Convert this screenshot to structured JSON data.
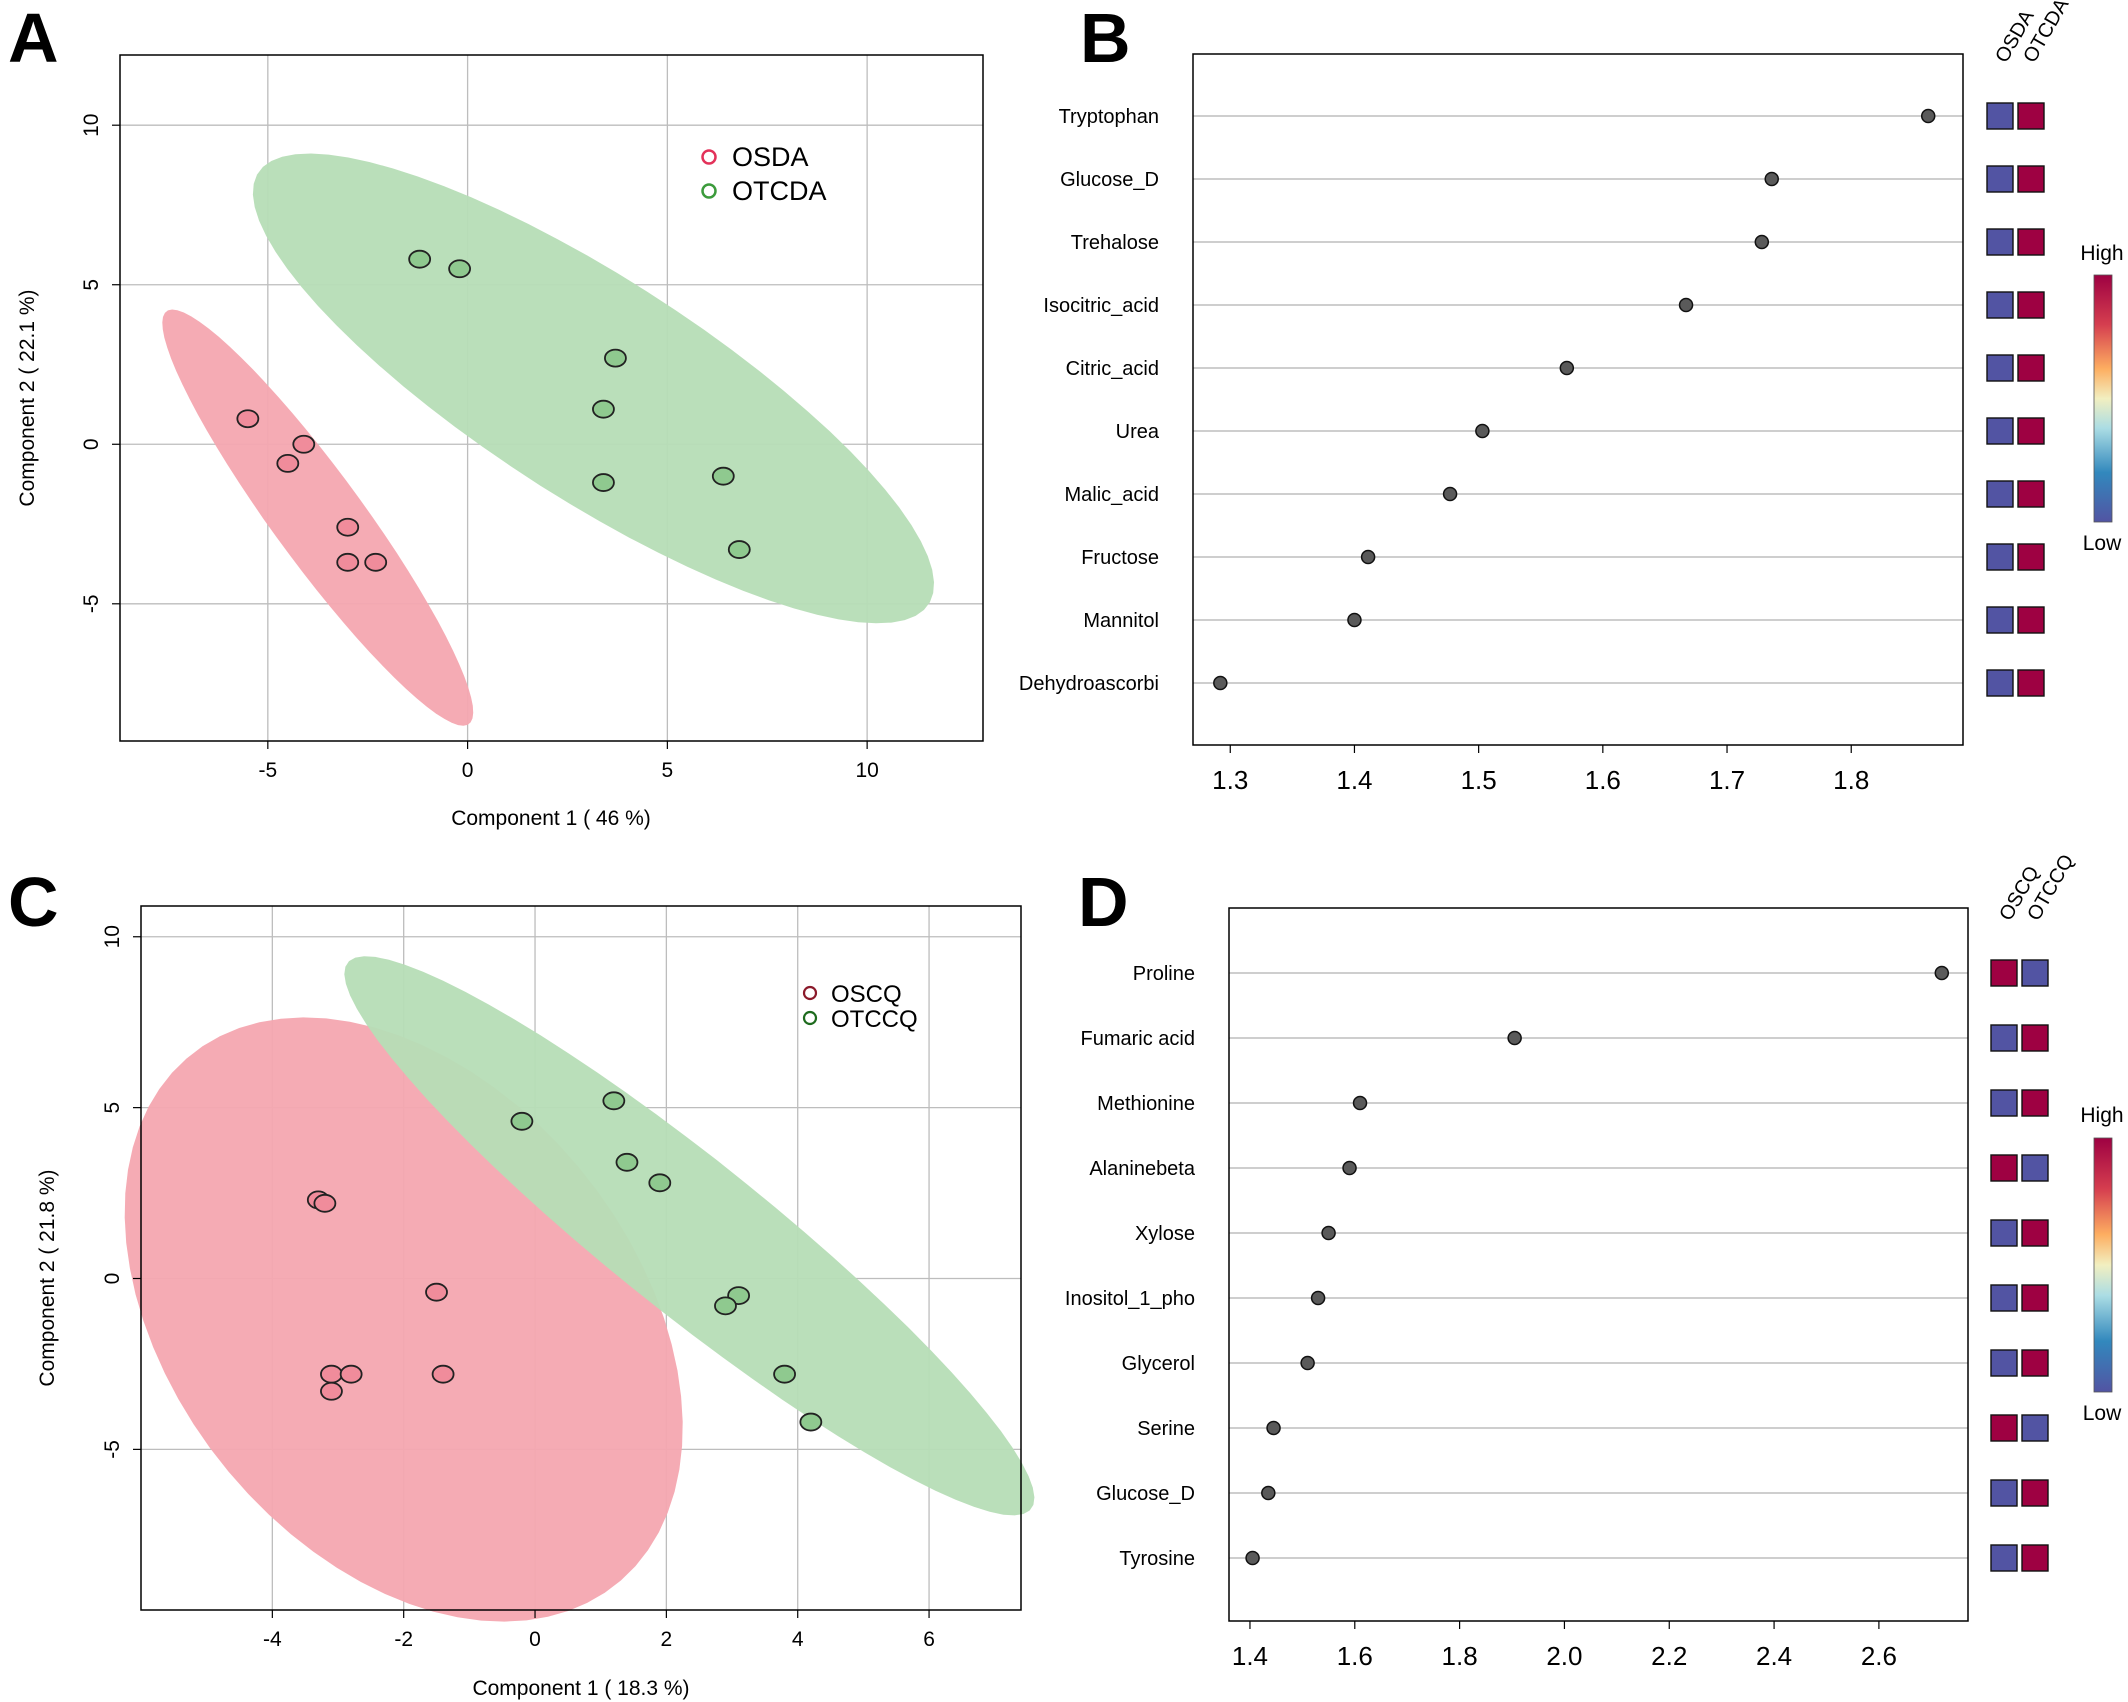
{
  "colors": {
    "osda_fill": "#F4A6B0",
    "otcda_fill": "#B6DDB6",
    "osda_point": "#F08C9B",
    "otcda_point": "#8FC98F",
    "legend_red": "#E3325A",
    "legend_green": "#3C9B3C",
    "legend_darkred": "#8B1A2B",
    "legend_darkgreen": "#1E6B1E",
    "high": "#9E0142",
    "low": "#5254A3",
    "grid": "#BDBDBD",
    "dot": "#5A5A5A"
  },
  "chart_data": [
    {
      "panel": "A",
      "type": "scatter",
      "xlabel": "Component 1 ( 46 %)",
      "ylabel": "Component 2 ( 22.1 %)",
      "xlim": [
        -8.7,
        12.9
      ],
      "ylim": [
        -9.3,
        12.2
      ],
      "xticks": [
        "-5",
        "0",
        "5",
        "10"
      ],
      "xtick_values": [
        -5,
        0,
        5,
        10
      ],
      "yticks": [
        "10",
        "5",
        "0",
        "-5"
      ],
      "ytick_values": [
        10,
        5,
        0,
        -5
      ],
      "legend": [
        "OSDA",
        "OTCDA"
      ],
      "series": [
        {
          "name": "OSDA",
          "points": [
            [
              -5.5,
              0.8
            ],
            [
              -4.1,
              0.0
            ],
            [
              -4.5,
              -0.6
            ],
            [
              -3.0,
              -2.6
            ],
            [
              -3.0,
              -3.7
            ],
            [
              -2.3,
              -3.7
            ]
          ],
          "ellipse": {
            "cx": -3.75,
            "cy": -2.3,
            "rx": 7.5,
            "ry": 1.2,
            "angle_deg": -60
          }
        },
        {
          "name": "OTCDA",
          "points": [
            [
              -1.2,
              5.8
            ],
            [
              -0.2,
              5.5
            ],
            [
              3.7,
              2.7
            ],
            [
              3.4,
              1.1
            ],
            [
              3.4,
              -1.2
            ],
            [
              6.4,
              -1.0
            ],
            [
              6.8,
              -3.3
            ]
          ],
          "ellipse": {
            "cx": 3.15,
            "cy": 1.75,
            "rx": 10.8,
            "ry": 3.2,
            "angle_deg": -40
          }
        }
      ]
    },
    {
      "panel": "B",
      "type": "scatter",
      "xlim": [
        1.27,
        1.89
      ],
      "xticks": [
        "1.3",
        "1.4",
        "1.5",
        "1.6",
        "1.7",
        "1.8"
      ],
      "xtick_values": [
        1.3,
        1.4,
        1.5,
        1.6,
        1.7,
        1.8
      ],
      "features": [
        "Tryptophan",
        "Glucose_D",
        "Trehalose",
        "Isocitric_acid",
        "Citric_acid",
        "Urea",
        "Malic_acid",
        "Fructose",
        "Mannitol",
        "Dehydroascorbi"
      ],
      "values": [
        1.862,
        1.736,
        1.728,
        1.667,
        1.571,
        1.503,
        1.477,
        1.411,
        1.4,
        1.292
      ],
      "columns": [
        "OSDA",
        "OTCDA"
      ],
      "heat": [
        [
          "low",
          "high"
        ],
        [
          "low",
          "high"
        ],
        [
          "low",
          "high"
        ],
        [
          "low",
          "high"
        ],
        [
          "low",
          "high"
        ],
        [
          "low",
          "high"
        ],
        [
          "low",
          "high"
        ],
        [
          "low",
          "high"
        ],
        [
          "low",
          "high"
        ],
        [
          "low",
          "high"
        ]
      ],
      "scale_high": "High",
      "scale_low": "Low"
    },
    {
      "panel": "C",
      "type": "scatter",
      "xlabel": "Component 1 ( 18.3 %)",
      "ylabel": "Component 2 ( 21.8 %)",
      "xlim": [
        -6.0,
        7.4
      ],
      "ylim": [
        -9.7,
        10.9
      ],
      "xticks": [
        "-4",
        "-2",
        "0",
        "2",
        "4",
        "6"
      ],
      "xtick_values": [
        -4,
        -2,
        0,
        2,
        4,
        6
      ],
      "yticks": [
        "10",
        "5",
        "0",
        "-5"
      ],
      "ytick_values": [
        10,
        5,
        0,
        -5
      ],
      "legend": [
        "OSCQ",
        "OTCCQ"
      ],
      "series": [
        {
          "name": "OSCQ",
          "points": [
            [
              -3.3,
              2.3
            ],
            [
              -3.2,
              2.2
            ],
            [
              -1.5,
              -0.4
            ],
            [
              -3.1,
              -2.8
            ],
            [
              -2.8,
              -2.8
            ],
            [
              -3.1,
              -3.3
            ],
            [
              -1.4,
              -2.8
            ]
          ],
          "ellipse": {
            "cx": -2.0,
            "cy": -1.2,
            "rx": 9.0,
            "ry": 3.9,
            "angle_deg": -78
          }
        },
        {
          "name": "OTCCQ",
          "points": [
            [
              -0.2,
              4.6
            ],
            [
              1.2,
              5.2
            ],
            [
              1.4,
              3.4
            ],
            [
              1.9,
              2.8
            ],
            [
              3.1,
              -0.5
            ],
            [
              2.9,
              -0.8
            ],
            [
              3.8,
              -2.8
            ],
            [
              4.2,
              -4.2
            ]
          ],
          "ellipse": {
            "cx": 2.35,
            "cy": 1.25,
            "rx": 9.6,
            "ry": 1.55,
            "angle_deg": -58
          }
        }
      ]
    },
    {
      "panel": "D",
      "type": "scatter",
      "xlim": [
        1.36,
        2.77
      ],
      "xticks": [
        "1.4",
        "1.6",
        "1.8",
        "2.0",
        "2.2",
        "2.4",
        "2.6"
      ],
      "xtick_values": [
        1.4,
        1.6,
        1.8,
        2.0,
        2.2,
        2.4,
        2.6
      ],
      "features": [
        "Proline",
        "Fumaric acid",
        "Methionine",
        "Alaninebeta",
        "Xylose",
        "Inositol_1_pho",
        "Glycerol",
        "Serine",
        "Glucose_D",
        "Tyrosine"
      ],
      "values": [
        2.72,
        1.905,
        1.61,
        1.59,
        1.55,
        1.53,
        1.51,
        1.445,
        1.435,
        1.405
      ],
      "columns": [
        "OSCQ",
        "OTCCQ"
      ],
      "heat": [
        [
          "high",
          "low"
        ],
        [
          "low",
          "high"
        ],
        [
          "low",
          "high"
        ],
        [
          "high",
          "low"
        ],
        [
          "low",
          "high"
        ],
        [
          "low",
          "high"
        ],
        [
          "low",
          "high"
        ],
        [
          "high",
          "low"
        ],
        [
          "low",
          "high"
        ],
        [
          "low",
          "high"
        ]
      ],
      "scale_high": "High",
      "scale_low": "Low"
    }
  ]
}
